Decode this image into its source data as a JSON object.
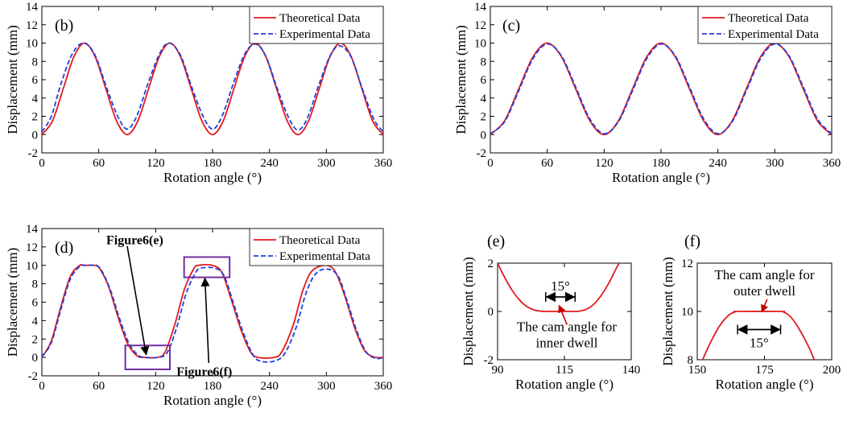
{
  "chart_data": [
    {
      "id": "b",
      "type": "line",
      "panel_label": "(b)",
      "xlabel": "Rotation angle (°)",
      "ylabel": "Displacement (mm)",
      "xlim": [
        0,
        360
      ],
      "ylim": [
        -2,
        14
      ],
      "xticks": [
        0,
        60,
        120,
        180,
        240,
        300,
        360
      ],
      "yticks": [
        -2,
        0,
        2,
        4,
        6,
        8,
        10,
        12,
        14
      ],
      "grid": false,
      "legend": "top-right",
      "series": [
        {
          "name": "Theoretical Data",
          "color": "#e41a1c",
          "style": "solid",
          "x": [
            0,
            11.25,
            22.5,
            33.75,
            45,
            56.25,
            67.5,
            78.75,
            90,
            101.25,
            112.5,
            123.75,
            135,
            146.25,
            157.5,
            168.75,
            180,
            191.25,
            202.5,
            213.75,
            225,
            236.25,
            247.5,
            258.75,
            270,
            281.25,
            292.5,
            303.75,
            315,
            326.25,
            337.5,
            348.75,
            360
          ],
          "y": [
            0,
            1.5,
            5,
            8.5,
            10,
            8.5,
            5,
            1.5,
            0,
            1.5,
            5,
            8.5,
            10,
            8.5,
            5,
            1.5,
            0,
            1.5,
            5,
            8.5,
            10,
            8.5,
            5,
            1.5,
            0,
            1.5,
            5,
            8.5,
            10,
            8.5,
            5,
            1.5,
            0
          ]
        },
        {
          "name": "Experimental Data",
          "color": "#1f3fe0",
          "style": "dashed",
          "x": [
            0,
            10,
            20,
            32,
            44,
            56,
            68,
            80,
            90,
            100,
            112,
            124,
            134,
            146,
            158,
            170,
            180,
            190,
            202,
            214,
            225,
            236,
            248,
            260,
            270,
            280,
            292,
            304,
            314,
            326,
            338,
            350,
            360
          ],
          "y": [
            0.3,
            2,
            5.5,
            8.8,
            10,
            8.7,
            5.2,
            2,
            0.6,
            2,
            5.6,
            8.8,
            10,
            8.7,
            5.2,
            2,
            0.6,
            2,
            5.6,
            8.8,
            9.9,
            8.6,
            5.1,
            1.9,
            0.5,
            1.8,
            5.4,
            8.6,
            9.7,
            8.5,
            5,
            1.7,
            0.3
          ]
        }
      ]
    },
    {
      "id": "c",
      "type": "line",
      "panel_label": "(c)",
      "xlabel": "Rotation angle (°)",
      "ylabel": "Displacement (mm)",
      "xlim": [
        0,
        360
      ],
      "ylim": [
        -2,
        14
      ],
      "xticks": [
        0,
        60,
        120,
        180,
        240,
        300,
        360
      ],
      "yticks": [
        -2,
        0,
        2,
        4,
        6,
        8,
        10,
        12,
        14
      ],
      "grid": false,
      "legend": "top-right",
      "series": [
        {
          "name": "Theoretical Data",
          "color": "#e41a1c",
          "style": "solid",
          "x": [
            0,
            15,
            30,
            45,
            60,
            75,
            90,
            105,
            120,
            135,
            150,
            165,
            180,
            195,
            210,
            225,
            240,
            255,
            270,
            285,
            300,
            315,
            330,
            345,
            360
          ],
          "y": [
            0,
            1.5,
            5,
            8.5,
            10,
            8.5,
            5,
            1.5,
            0,
            1.5,
            5,
            8.5,
            10,
            8.5,
            5,
            1.5,
            0,
            1.5,
            5,
            8.5,
            10,
            8.5,
            5,
            1.5,
            0
          ]
        },
        {
          "name": "Experimental Data",
          "color": "#1f3fe0",
          "style": "dashed",
          "x": [
            0,
            15,
            30,
            45,
            60,
            75,
            90,
            105,
            120,
            135,
            150,
            165,
            180,
            195,
            210,
            225,
            240,
            255,
            270,
            285,
            300,
            315,
            330,
            345,
            360
          ],
          "y": [
            0.1,
            1.4,
            4.8,
            8.3,
            9.9,
            8.6,
            5.2,
            1.7,
            0.1,
            1.4,
            4.8,
            8.3,
            9.9,
            8.6,
            5.2,
            1.7,
            0.1,
            1.4,
            4.8,
            8.3,
            9.9,
            8.6,
            5.2,
            1.7,
            0.1
          ]
        }
      ]
    },
    {
      "id": "d",
      "type": "line",
      "panel_label": "(d)",
      "xlabel": "Rotation angle (°)",
      "ylabel": "Displacement (mm)",
      "xlim": [
        0,
        360
      ],
      "ylim": [
        -2,
        14
      ],
      "xticks": [
        0,
        60,
        120,
        180,
        240,
        300,
        360
      ],
      "yticks": [
        -2,
        0,
        2,
        4,
        6,
        8,
        10,
        12,
        14
      ],
      "grid": false,
      "legend": "top-right",
      "annotations": [
        {
          "text": "Figure6(e)",
          "box_x": [
            88,
            135
          ],
          "box_y": [
            -1.3,
            1.3
          ],
          "arrow_from": [
            90,
            12.1
          ],
          "arrow_to": [
            110,
            0.3
          ]
        },
        {
          "text": "Figure6(f)",
          "box_x": [
            150,
            198
          ],
          "box_y": [
            8.7,
            10.9
          ],
          "arrow_from": [
            176,
            -0.6
          ],
          "arrow_to": [
            172,
            8.6
          ]
        }
      ],
      "series": [
        {
          "name": "Theoretical Data",
          "color": "#e41a1c",
          "style": "solid",
          "x": [
            0,
            10,
            20,
            30,
            40,
            45,
            55,
            60,
            70,
            80,
            90,
            100,
            108,
            122,
            130,
            140,
            150,
            160,
            165,
            180,
            190,
            200,
            210,
            220,
            228,
            245,
            253,
            265,
            275,
            285,
            300,
            310,
            320,
            330,
            340,
            350,
            360
          ],
          "y": [
            0,
            1.8,
            5.5,
            8.8,
            10,
            10,
            10,
            9.8,
            7.8,
            4.5,
            1.6,
            0.2,
            0,
            0,
            0.6,
            3.5,
            7.3,
            9.6,
            10,
            10,
            9.2,
            6.2,
            3,
            0.6,
            0,
            0,
            0.6,
            3.5,
            7.2,
            9.4,
            10,
            9.2,
            6.5,
            3.2,
            0.8,
            0.05,
            0
          ]
        },
        {
          "name": "Experimental Data",
          "color": "#1f3fe0",
          "style": "dashed",
          "x": [
            0,
            10,
            20,
            30,
            40,
            45,
            55,
            62,
            72,
            82,
            92,
            102,
            110,
            122,
            132,
            142,
            152,
            162,
            168,
            182,
            192,
            202,
            212,
            222,
            230,
            245,
            256,
            268,
            278,
            288,
            300,
            312,
            322,
            332,
            342,
            352,
            360
          ],
          "y": [
            0.1,
            1.6,
            5.2,
            8.5,
            9.9,
            10,
            10,
            9.6,
            7.4,
            4.2,
            1.5,
            0.2,
            0,
            0,
            0.5,
            3.2,
            6.9,
            9.2,
            9.7,
            9.7,
            8.9,
            5.9,
            2.8,
            0.4,
            -0.4,
            -0.4,
            0.4,
            3.2,
            6.8,
            9,
            9.6,
            8.9,
            6.1,
            2.9,
            0.6,
            -0.1,
            0
          ]
        }
      ]
    },
    {
      "id": "e",
      "type": "line",
      "panel_label": "(e)",
      "xlabel": "Rotation angle (°)",
      "ylabel": "Displacement (mm)",
      "xlim": [
        90,
        140
      ],
      "ylim": [
        -2,
        2
      ],
      "xticks": [
        90,
        115,
        140
      ],
      "yticks": [
        -2,
        0,
        2
      ],
      "grid": false,
      "annotations": [
        {
          "text": "15°",
          "span_x": [
            108,
            119
          ],
          "y": 0.6
        },
        {
          "text_lines": [
            "The cam angle for",
            "inner dwell"
          ],
          "arrow_from": [
            116,
            -0.55
          ],
          "arrow_to": [
            113,
            0.25
          ]
        }
      ],
      "series": [
        {
          "name": "Theoretical Data",
          "color": "#e41a1c",
          "style": "solid",
          "x": [
            90,
            92,
            95,
            98,
            101,
            104,
            107,
            108,
            119,
            120,
            123,
            126,
            129,
            132,
            134,
            135.5
          ],
          "y": [
            2,
            1.55,
            0.95,
            0.5,
            0.2,
            0.05,
            0.005,
            0,
            0,
            0.005,
            0.08,
            0.3,
            0.7,
            1.25,
            1.7,
            2
          ]
        }
      ]
    },
    {
      "id": "f",
      "type": "line",
      "panel_label": "(f)",
      "xlabel": "Rotation angle (°)",
      "ylabel": "Displacement (mm)",
      "xlim": [
        150,
        200
      ],
      "ylim": [
        8,
        12
      ],
      "xticks": [
        150,
        175,
        200
      ],
      "yticks": [
        8,
        10,
        12
      ],
      "grid": false,
      "annotations": [
        {
          "text_lines": [
            "The cam angle for",
            "outer dwell"
          ]
        },
        {
          "text": "15°",
          "span_x": [
            165,
            181
          ],
          "y": 9.25
        },
        {
          "arrow_from": [
            176,
            10.7
          ],
          "arrow_to": [
            174,
            10.05
          ]
        }
      ],
      "series": [
        {
          "name": "Theoretical Data",
          "color": "#e41a1c",
          "style": "solid",
          "x": [
            152,
            154,
            156,
            158,
            160,
            162,
            164,
            165,
            181,
            182,
            184,
            186,
            188,
            190,
            192,
            193.5
          ],
          "y": [
            8,
            8.5,
            8.95,
            9.35,
            9.65,
            9.87,
            9.98,
            10,
            10,
            9.98,
            9.85,
            9.6,
            9.25,
            8.85,
            8.4,
            8
          ]
        }
      ]
    }
  ]
}
